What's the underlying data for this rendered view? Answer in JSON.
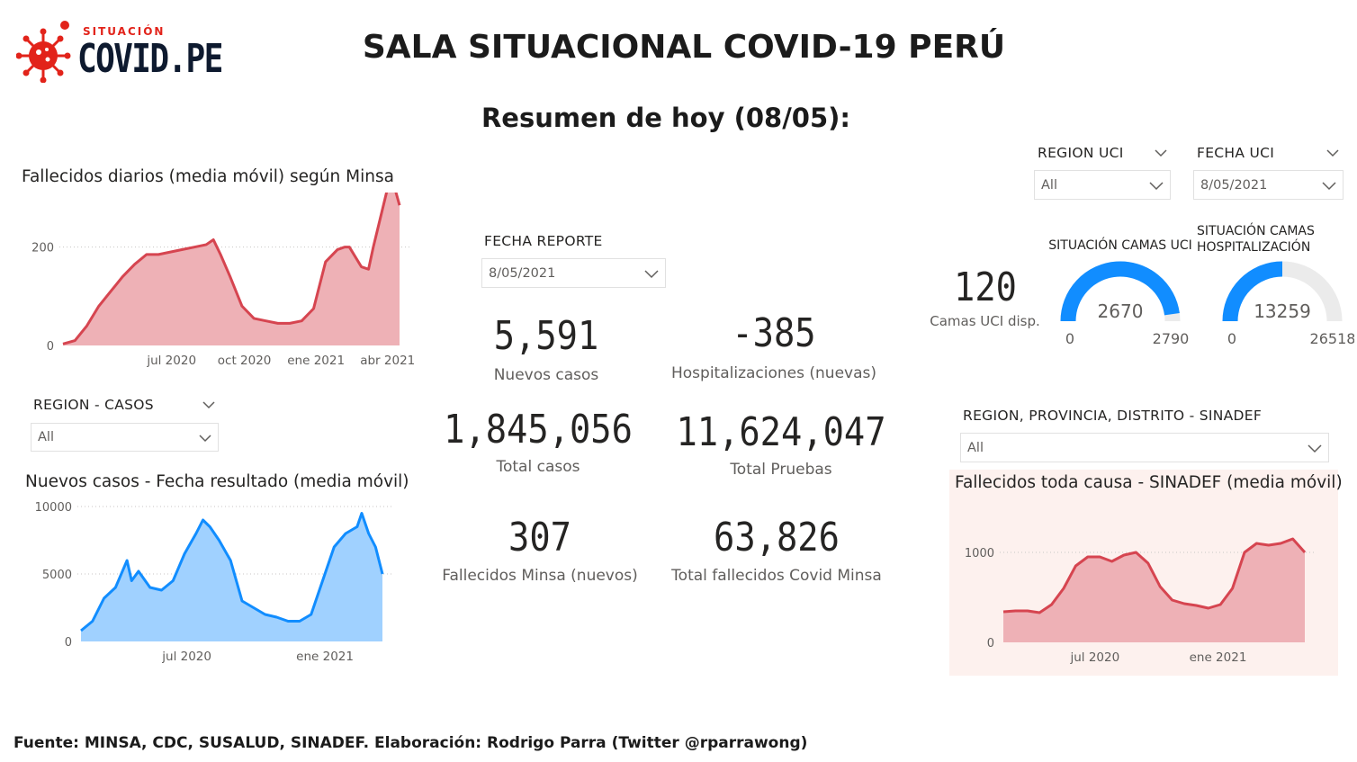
{
  "logo": {
    "small_text": "SITUACIÓN",
    "main_text": "COVID.PE"
  },
  "header": {
    "title": "SALA SITUACIONAL COVID-19 PERÚ",
    "summary": "Resumen de hoy (08/05):"
  },
  "colors": {
    "red_line": "#d64550",
    "red_fill": "#eeb1b6",
    "blue_line": "#118dff",
    "blue_fill": "#a0d1ff",
    "gauge_blue": "#118dff",
    "gauge_bg": "#ebebeb",
    "sinadef_bg": "#fdf1ee"
  },
  "slicers": {
    "fecha_reporte": {
      "label": "FECHA REPORTE",
      "value": "8/05/2021",
      "icon": "chevron-down-icon"
    },
    "region_casos": {
      "label": "REGION - CASOS",
      "value": "All",
      "icon": "chevron-down-icon"
    },
    "region_uci": {
      "label": "REGION UCI",
      "value": "All",
      "icon": "chevron-down-icon"
    },
    "fecha_uci": {
      "label": "FECHA UCI",
      "value": "8/05/2021",
      "icon": "chevron-down-icon"
    },
    "region_sinadef": {
      "label": "REGION, PROVINCIA, DISTRITO - SINADEF",
      "value": "All",
      "icon": "chevron-down-icon"
    }
  },
  "kpis": {
    "nuevos_casos": {
      "value": "5,591",
      "label": "Nuevos casos"
    },
    "hospitalizaciones": {
      "value": "-385",
      "label": "Hospitalizaciones (nuevas)"
    },
    "total_casos": {
      "value": "1,845,056",
      "label": "Total casos"
    },
    "total_pruebas": {
      "value": "11,624,047",
      "label": "Total Pruebas"
    },
    "fallecidos_nuevos": {
      "value": "307",
      "label": "Fallecidos Minsa (nuevos)"
    },
    "total_fallecidos": {
      "value": "63,826",
      "label": "Total fallecidos Covid Minsa"
    },
    "camas_uci": {
      "value": "120",
      "label": "Camas UCI disp."
    }
  },
  "gauges": {
    "uci": {
      "title": "SITUACIÓN CAMAS UCI",
      "value": 2670,
      "min": 0,
      "max": 2790,
      "value_text": "2670",
      "min_text": "0",
      "max_text": "2790"
    },
    "hosp": {
      "title_line1": "SITUACIÓN CAMAS",
      "title_line2": "HOSPITALIZACIÓN",
      "value": 13259,
      "min": 0,
      "max": 26518,
      "value_text": "13259",
      "min_text": "0",
      "max_text": "26518"
    }
  },
  "chart_data": [
    {
      "id": "fallecidos",
      "type": "area",
      "title": "Fallecidos diarios (media móvil) según Minsa",
      "ylim": [
        0,
        300
      ],
      "yticks": [
        0,
        200
      ],
      "xticks": [
        "jul 2020",
        "oct 2020",
        "ene 2021",
        "abr 2021"
      ],
      "xtick_pos": [
        4.55,
        7.6,
        10.6,
        13.6
      ],
      "xlim": [
        0,
        14.1
      ],
      "x": [
        0,
        0.5,
        1,
        1.5,
        2,
        2.5,
        3,
        3.5,
        4,
        4.5,
        5,
        5.5,
        6,
        6.3,
        6.6,
        7,
        7.5,
        8,
        8.5,
        9,
        9.5,
        10,
        10.5,
        11,
        11.5,
        11.8,
        12,
        12.5,
        12.8,
        13,
        13.3,
        13.5,
        13.7,
        13.9,
        14.1
      ],
      "values": [
        3,
        10,
        40,
        80,
        110,
        140,
        165,
        185,
        185,
        190,
        195,
        200,
        205,
        215,
        185,
        140,
        80,
        55,
        50,
        45,
        45,
        50,
        75,
        170,
        195,
        200,
        200,
        160,
        155,
        200,
        260,
        300,
        340,
        320,
        285
      ]
    },
    {
      "id": "casos",
      "type": "area",
      "title": "Nuevos casos - Fecha resultado (media móvil)",
      "ylim": [
        0,
        10000
      ],
      "yticks": [
        0,
        5000,
        10000
      ],
      "xticks": [
        "jul 2020",
        "ene 2021"
      ],
      "xtick_pos": [
        4.6,
        10.6
      ],
      "xlim": [
        0,
        13.1
      ],
      "x": [
        0,
        0.5,
        1,
        1.5,
        2,
        2.2,
        2.5,
        3,
        3.5,
        4,
        4.5,
        5,
        5.3,
        5.6,
        6,
        6.5,
        7,
        7.5,
        8,
        8.5,
        9,
        9.5,
        10,
        10.5,
        11,
        11.5,
        12,
        12.2,
        12.5,
        12.8,
        13.1
      ],
      "values": [
        800,
        1500,
        3200,
        4000,
        6000,
        4500,
        5200,
        4000,
        3800,
        4500,
        6500,
        8000,
        9000,
        8500,
        7500,
        6000,
        3000,
        2500,
        2000,
        1800,
        1500,
        1500,
        2000,
        4500,
        7000,
        8000,
        8500,
        9500,
        8000,
        7000,
        5000
      ]
    },
    {
      "id": "sinadef",
      "type": "area",
      "title": "Fallecidos toda causa - SINADEF (media móvil)",
      "ylim": [
        0,
        1250
      ],
      "yticks": [
        0,
        1000
      ],
      "xticks": [
        "jul 2020",
        "ene 2021"
      ],
      "xtick_pos": [
        3.8,
        8.9
      ],
      "xlim": [
        0,
        12.5
      ],
      "x": [
        0,
        0.5,
        1,
        1.5,
        2,
        2.5,
        3,
        3.5,
        4,
        4.5,
        5,
        5.5,
        6,
        6.5,
        7,
        7.5,
        8,
        8.5,
        9,
        9.5,
        10,
        10.5,
        11,
        11.5,
        12,
        12.5
      ],
      "values": [
        340,
        350,
        350,
        330,
        420,
        600,
        850,
        950,
        950,
        900,
        970,
        1000,
        880,
        620,
        470,
        430,
        410,
        380,
        420,
        600,
        1000,
        1100,
        1080,
        1100,
        1150,
        1000
      ]
    }
  ],
  "footer": "Fuente: MINSA, CDC, SUSALUD, SINADEF. Elaboración: Rodrigo Parra (Twitter @rparrawong)"
}
